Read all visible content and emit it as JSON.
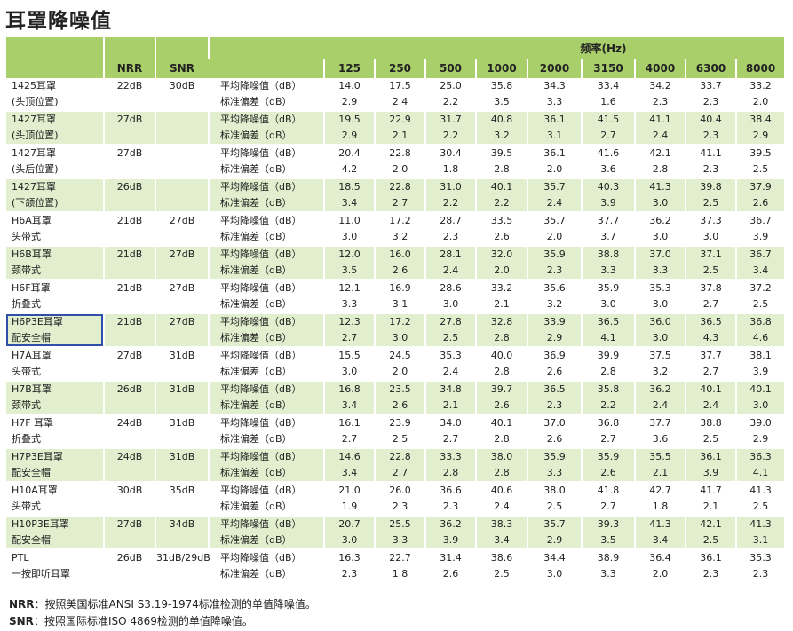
{
  "title": "耳罩降噪值",
  "header": {
    "nrr": "NRR",
    "snr": "SNR",
    "freq_title": "频率(Hz)",
    "frequencies": [
      "125",
      "250",
      "500",
      "1000",
      "2000",
      "3150",
      "4000",
      "6300",
      "8000"
    ]
  },
  "rows": [
    {
      "model": [
        "1425耳罩",
        "(头顶位置)"
      ],
      "nrr": "22dB",
      "snr": "30dB",
      "green": false,
      "avg_label": "平均降噪值（dB）",
      "avg": [
        "14.0",
        "17.5",
        "25.0",
        "35.8",
        "34.3",
        "33.4",
        "34.2",
        "33.7",
        "33.2"
      ],
      "sd_label": "标准偏差（dB）",
      "sd": [
        "2.9",
        "2.4",
        "2.2",
        "3.5",
        "3.3",
        "1.6",
        "2.3",
        "2.3",
        "2.0"
      ]
    },
    {
      "model": [
        "1427耳罩",
        "(头顶位置)"
      ],
      "nrr": "27dB",
      "snr": "",
      "green": true,
      "avg_label": "平均降噪值（dB）",
      "avg": [
        "19.5",
        "22.9",
        "31.7",
        "40.8",
        "36.1",
        "41.5",
        "41.1",
        "40.4",
        "38.4"
      ],
      "sd_label": "标准偏差（dB）",
      "sd": [
        "2.9",
        "2.1",
        "2.2",
        "3.2",
        "3.1",
        "2.7",
        "2.4",
        "2.3",
        "2.9"
      ]
    },
    {
      "model": [
        "1427耳罩",
        "(头后位置)"
      ],
      "nrr": "27dB",
      "snr": "",
      "green": false,
      "avg_label": "平均降噪值（dB）",
      "avg": [
        "20.4",
        "22.8",
        "30.4",
        "39.5",
        "36.1",
        "41.6",
        "42.1",
        "41.1",
        "39.5"
      ],
      "sd_label": "标准偏差（dB）",
      "sd": [
        "4.2",
        "2.0",
        "1.8",
        "2.8",
        "2.0",
        "3.6",
        "2.8",
        "2.3",
        "2.5"
      ]
    },
    {
      "model": [
        "1427耳罩",
        "(下颌位置)"
      ],
      "nrr": "26dB",
      "snr": "",
      "green": true,
      "avg_label": "平均降噪值（dB）",
      "avg": [
        "18.5",
        "22.8",
        "31.0",
        "40.1",
        "35.7",
        "40.3",
        "41.3",
        "39.8",
        "37.9"
      ],
      "sd_label": "标准偏差（dB）",
      "sd": [
        "3.4",
        "2.7",
        "2.2",
        "2.2",
        "2.4",
        "3.9",
        "3.0",
        "2.5",
        "2.6"
      ]
    },
    {
      "model": [
        "H6A耳罩",
        "头带式"
      ],
      "nrr": "21dB",
      "snr": "27dB",
      "green": false,
      "avg_label": "平均降噪值（dB）",
      "avg": [
        "11.0",
        "17.2",
        "28.7",
        "33.5",
        "35.7",
        "37.7",
        "36.2",
        "37.3",
        "36.7"
      ],
      "sd_label": "标准偏差（dB）",
      "sd": [
        "3.0",
        "3.2",
        "2.3",
        "2.6",
        "2.0",
        "3.7",
        "3.0",
        "3.0",
        "3.9"
      ]
    },
    {
      "model": [
        "H6B耳罩",
        "颈带式"
      ],
      "nrr": "21dB",
      "snr": "27dB",
      "green": true,
      "avg_label": "平均降噪值（dB）",
      "avg": [
        "12.0",
        "16.0",
        "28.1",
        "32.0",
        "35.9",
        "38.8",
        "37.0",
        "37.1",
        "36.7"
      ],
      "sd_label": "标准偏差（dB）",
      "sd": [
        "3.5",
        "2.6",
        "2.4",
        "2.0",
        "2.3",
        "3.3",
        "3.3",
        "2.5",
        "3.4"
      ]
    },
    {
      "model": [
        "H6F耳罩",
        "折叠式"
      ],
      "nrr": "21dB",
      "snr": "27dB",
      "green": false,
      "avg_label": "平均降噪值（dB）",
      "avg": [
        "12.1",
        "16.9",
        "28.6",
        "33.2",
        "35.6",
        "35.9",
        "35.3",
        "37.8",
        "37.2"
      ],
      "sd_label": "标准偏差（dB）",
      "sd": [
        "3.3",
        "3.1",
        "3.0",
        "2.1",
        "3.2",
        "3.0",
        "3.0",
        "2.7",
        "2.5"
      ]
    },
    {
      "model": [
        "H6P3E耳罩",
        "配安全帽"
      ],
      "nrr": "21dB",
      "snr": "27dB",
      "green": true,
      "boxed": true,
      "avg_label": "平均降噪值（dB）",
      "avg": [
        "12.3",
        "17.2",
        "27.8",
        "32.8",
        "33.9",
        "36.5",
        "36.0",
        "36.5",
        "36.8"
      ],
      "sd_label": "标准偏差（dB）",
      "sd": [
        "2.7",
        "3.0",
        "2.5",
        "2.8",
        "2.9",
        "4.1",
        "3.0",
        "4.3",
        "4.6"
      ]
    },
    {
      "model": [
        "H7A耳罩",
        "头带式"
      ],
      "nrr": "27dB",
      "snr": "31dB",
      "green": false,
      "avg_label": "平均降噪值（dB）",
      "avg": [
        "15.5",
        "24.5",
        "35.3",
        "40.0",
        "36.9",
        "39.9",
        "37.5",
        "37.7",
        "38.1"
      ],
      "sd_label": "标准偏差（dB）",
      "sd": [
        "3.0",
        "2.0",
        "2.4",
        "2.8",
        "2.6",
        "2.8",
        "3.2",
        "2.7",
        "3.9"
      ]
    },
    {
      "model": [
        "H7B耳罩",
        "颈带式"
      ],
      "nrr": "26dB",
      "snr": "31dB",
      "green": true,
      "avg_label": "平均降噪值（dB）",
      "avg": [
        "16.8",
        "23.5",
        "34.8",
        "39.7",
        "36.5",
        "35.8",
        "36.2",
        "40.1",
        "40.1"
      ],
      "sd_label": "标准偏差（dB）",
      "sd": [
        "3.4",
        "2.6",
        "2.1",
        "2.6",
        "2.3",
        "2.2",
        "2.4",
        "2.4",
        "3.0"
      ]
    },
    {
      "model": [
        "H7F 耳罩",
        "折叠式"
      ],
      "nrr": "24dB",
      "snr": "31dB",
      "green": false,
      "avg_label": "平均降噪值（dB）",
      "avg": [
        "16.1",
        "23.9",
        "34.0",
        "40.1",
        "37.0",
        "36.8",
        "37.7",
        "38.8",
        "39.0"
      ],
      "sd_label": "标准偏差（dB）",
      "sd": [
        "2.7",
        "2.5",
        "2.7",
        "2.8",
        "2.6",
        "2.7",
        "3.6",
        "2.5",
        "2.9"
      ]
    },
    {
      "model": [
        "H7P3E耳罩",
        "配安全帽"
      ],
      "nrr": "24dB",
      "snr": "31dB",
      "green": true,
      "avg_label": "平均降噪值（dB）",
      "avg": [
        "14.6",
        "22.8",
        "33.3",
        "38.0",
        "35.9",
        "35.9",
        "35.5",
        "36.1",
        "36.3"
      ],
      "sd_label": "标准偏差（dB）",
      "sd": [
        "3.4",
        "2.7",
        "2.8",
        "2.8",
        "3.3",
        "2.6",
        "2.1",
        "3.9",
        "4.1"
      ]
    },
    {
      "model": [
        "H10A耳罩",
        "头带式"
      ],
      "nrr": "30dB",
      "snr": "35dB",
      "green": false,
      "avg_label": "平均降噪值（dB）",
      "avg": [
        "21.0",
        "26.0",
        "36.6",
        "40.6",
        "38.0",
        "41.8",
        "42.7",
        "41.7",
        "41.3"
      ],
      "sd_label": "标准偏差（dB）",
      "sd": [
        "1.9",
        "2.3",
        "2.3",
        "2.4",
        "2.5",
        "2.7",
        "1.8",
        "2.1",
        "2.5"
      ]
    },
    {
      "model": [
        "H10P3E耳罩",
        "配安全帽"
      ],
      "nrr": "27dB",
      "snr": "34dB",
      "green": true,
      "avg_label": "平均降噪值（dB）",
      "avg": [
        "20.7",
        "25.5",
        "36.2",
        "38.3",
        "35.7",
        "39.3",
        "41.3",
        "42.1",
        "41.3"
      ],
      "sd_label": "标准偏差（dB）",
      "sd": [
        "3.0",
        "3.3",
        "3.9",
        "3.4",
        "2.9",
        "3.5",
        "3.4",
        "2.5",
        "3.1"
      ]
    },
    {
      "model": [
        "PTL",
        "一按即听耳罩"
      ],
      "nrr": "26dB",
      "snr": "31dB/29dB",
      "green": false,
      "avg_label": "平均降噪值（dB）",
      "avg": [
        "16.3",
        "22.7",
        "31.4",
        "38.6",
        "34.4",
        "38.9",
        "36.4",
        "36.1",
        "35.3"
      ],
      "sd_label": "标准偏差（dB）",
      "sd": [
        "2.3",
        "1.8",
        "2.6",
        "2.5",
        "3.0",
        "3.3",
        "2.0",
        "2.3",
        "2.3"
      ]
    }
  ],
  "notes": [
    {
      "key": "NRR",
      "text": "：按照美国标准ANSI S3.19-1974标准检测的单值降噪值。"
    },
    {
      "key": "SNR",
      "text": "：按照国际标准ISO 4869检测的单值降噪值。"
    }
  ]
}
